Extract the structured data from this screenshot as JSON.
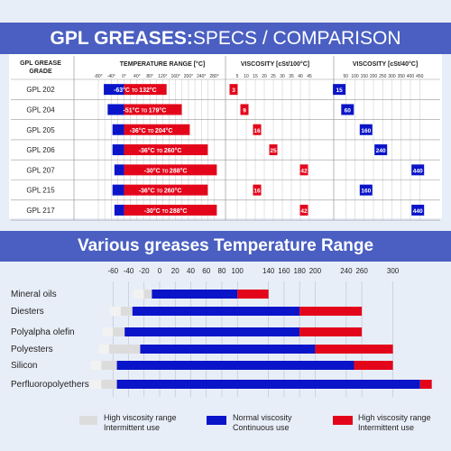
{
  "top": {
    "title_bold": "GPL GREASES:",
    "title_rest": "SPECS / COMPARISON",
    "grade_header": "GPL GREASE GRADE",
    "temp_header": "TEMPERATURE RANGE [°C]",
    "visc100_header": "VISCOSITY [cSt/100°C]",
    "visc40_header": "VISCOSITY [cSt/40°C]",
    "temp_ticks": [
      "-80°",
      "-40°",
      "0°",
      "40°",
      "80°",
      "120°",
      "160°",
      "200°",
      "240°",
      "280°"
    ],
    "visc100_ticks": [
      "5",
      "10",
      "15",
      "20",
      "25",
      "30",
      "35",
      "40",
      "45"
    ],
    "visc40_ticks": [
      "50",
      "100",
      "150",
      "200",
      "250",
      "300",
      "350",
      "400",
      "450"
    ]
  },
  "chart_data": [
    {
      "type": "table",
      "title": "GPL GREASES:SPECS / COMPARISON",
      "rows": [
        {
          "grade": "GPL 202",
          "tmin": -63,
          "tmax": 132,
          "label_min": "-63°C",
          "label_to": "TO",
          "label_max": "132°C",
          "v100": 3,
          "v40": 15
        },
        {
          "grade": "GPL 204",
          "tmin": -51,
          "tmax": 179,
          "label_min": "-51°C",
          "label_to": "TO",
          "label_max": "179°C",
          "v100": 9,
          "v40": 60
        },
        {
          "grade": "GPL 205",
          "tmin": -36,
          "tmax": 204,
          "label_min": "-36°C",
          "label_to": "TO",
          "label_max": "204°C",
          "v100": 16,
          "v40": 160
        },
        {
          "grade": "GPL 206",
          "tmin": -36,
          "tmax": 260,
          "label_min": "-36°C",
          "label_to": "TO",
          "label_max": "260°C",
          "v100": 25,
          "v40": 240
        },
        {
          "grade": "GPL 207",
          "tmin": -30,
          "tmax": 288,
          "label_min": "-30°C",
          "label_to": "TO",
          "label_max": "288°C",
          "v100": 42,
          "v40": 440
        },
        {
          "grade": "GPL 215",
          "tmin": -36,
          "tmax": 260,
          "label_min": "-36°C",
          "label_to": "TO",
          "label_max": "260°C",
          "v100": 16,
          "v40": 160
        },
        {
          "grade": "GPL 217",
          "tmin": -30,
          "tmax": 288,
          "label_min": "-30°C",
          "label_to": "TO",
          "label_max": "288°C",
          "v100": 42,
          "v40": 440
        }
      ]
    },
    {
      "type": "bar",
      "title": "Various greases Temperature Range",
      "ticks": [
        -60,
        -40,
        -20,
        0,
        20,
        40,
        60,
        80,
        100,
        140,
        160,
        180,
        200,
        240,
        260,
        300
      ],
      "rows": [
        {
          "name": "Mineral oils",
          "grey": [
            -20,
            -10
          ],
          "blue": [
            -10,
            100
          ],
          "red": [
            100,
            140
          ]
        },
        {
          "name": "Diesters",
          "grey": [
            -50,
            -35
          ],
          "blue": [
            -35,
            180
          ],
          "red": [
            180,
            260
          ]
        },
        {
          "name": "Polyalpha olefin",
          "grey": [
            -60,
            -45
          ],
          "blue": [
            -45,
            180
          ],
          "red": [
            180,
            260
          ]
        },
        {
          "name": "Polyesters",
          "grey": [
            -65,
            -25
          ],
          "blue": [
            -25,
            200
          ],
          "red": [
            200,
            300
          ]
        },
        {
          "name": "Silicon",
          "grey": [
            -75,
            -55
          ],
          "blue": [
            -55,
            250
          ],
          "red": [
            250,
            300
          ]
        },
        {
          "name": "Perfluoropolyethers",
          "grey": [
            -75,
            -55
          ],
          "blue": [
            -55,
            335
          ],
          "red": [
            335,
            350
          ]
        }
      ]
    }
  ],
  "legend": {
    "grey_line1": "High viscosity range",
    "grey_line2": "Intermittent use",
    "blue_line1": "Normal viscosity",
    "blue_line2": "Continuous use",
    "red_line1": "High viscosity range",
    "red_line2": "Intermittent use"
  },
  "colors": {
    "blue": "#0a14c8",
    "red": "#e3061b",
    "grey": "#dcdcdc",
    "banner": "#4a5fc1"
  }
}
